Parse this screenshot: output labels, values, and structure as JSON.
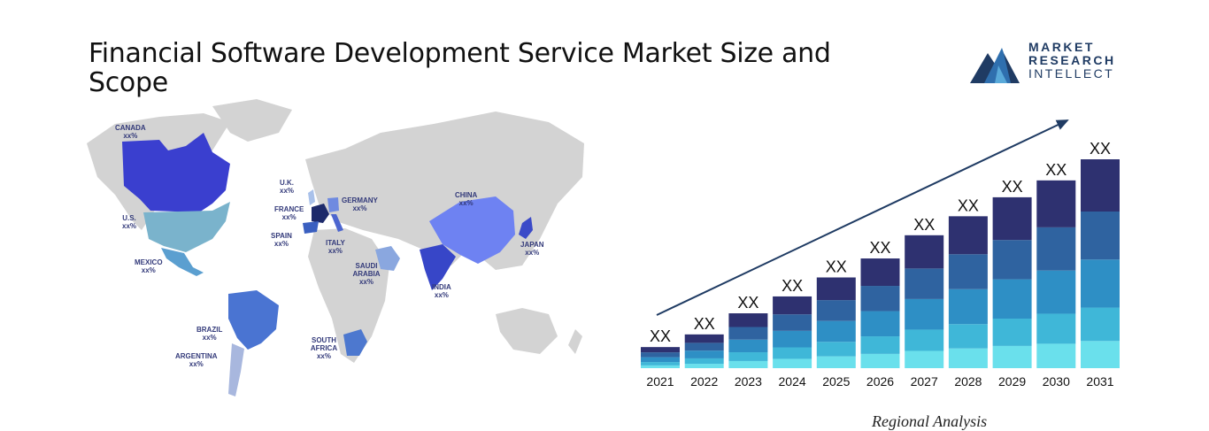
{
  "page": {
    "title": "Financial Software Development Service Market Size and Scope",
    "footer_partial": "Regional Analysis"
  },
  "logo": {
    "line1": "MARKET",
    "line2": "RESEARCH",
    "line3": "INTELLECT",
    "colors": {
      "dark": "#1f3b63",
      "mid": "#2f6fae",
      "light": "#59a9d9"
    }
  },
  "map": {
    "regions": [
      {
        "name": "CANADA",
        "value": "xx%",
        "color": "#3a3fcf"
      },
      {
        "name": "U.S.",
        "value": "xx%",
        "color": "#7ab3cc"
      },
      {
        "name": "MEXICO",
        "value": "xx%",
        "color": "#5b9fd0"
      },
      {
        "name": "BRAZIL",
        "value": "xx%",
        "color": "#4a74d2"
      },
      {
        "name": "ARGENTINA",
        "value": "xx%",
        "color": "#a8b7de"
      },
      {
        "name": "U.K.",
        "value": "xx%",
        "color": "#a9c1ea"
      },
      {
        "name": "FRANCE",
        "value": "xx%",
        "color": "#1d2a6b"
      },
      {
        "name": "SPAIN",
        "value": "xx%",
        "color": "#3a5fc0"
      },
      {
        "name": "GERMANY",
        "value": "xx%",
        "color": "#6f8ae0"
      },
      {
        "name": "ITALY",
        "value": "xx%",
        "color": "#4d66cf"
      },
      {
        "name": "SAUDI ARABIA",
        "value": "xx%",
        "color": "#8aa7df"
      },
      {
        "name": "SOUTH AFRICA",
        "value": "xx%",
        "color": "#4d78cf"
      },
      {
        "name": "CHINA",
        "value": "xx%",
        "color": "#6e82f2"
      },
      {
        "name": "INDIA",
        "value": "xx%",
        "color": "#3746c8"
      },
      {
        "name": "JAPAN",
        "value": "xx%",
        "color": "#3b4ac8"
      }
    ]
  },
  "chart_data": {
    "type": "bar",
    "stacked": true,
    "categories": [
      "2021",
      "2022",
      "2023",
      "2024",
      "2025",
      "2026",
      "2027",
      "2028",
      "2029",
      "2030",
      "2031"
    ],
    "totals": [
      1.0,
      1.6,
      2.6,
      3.4,
      4.3,
      5.2,
      6.3,
      7.2,
      8.1,
      8.9,
      9.9
    ],
    "bar_labels": [
      "XX",
      "XX",
      "XX",
      "XX",
      "XX",
      "XX",
      "XX",
      "XX",
      "XX",
      "XX",
      "XX"
    ],
    "segment_shares": [
      0.25,
      0.23,
      0.23,
      0.16,
      0.13
    ],
    "segment_colors": [
      "#2e3170",
      "#2f63a0",
      "#2e8fc5",
      "#3fb7d8",
      "#6ae0ec"
    ],
    "arrow": true,
    "grid": false,
    "xlabel": "",
    "ylabel": ""
  }
}
